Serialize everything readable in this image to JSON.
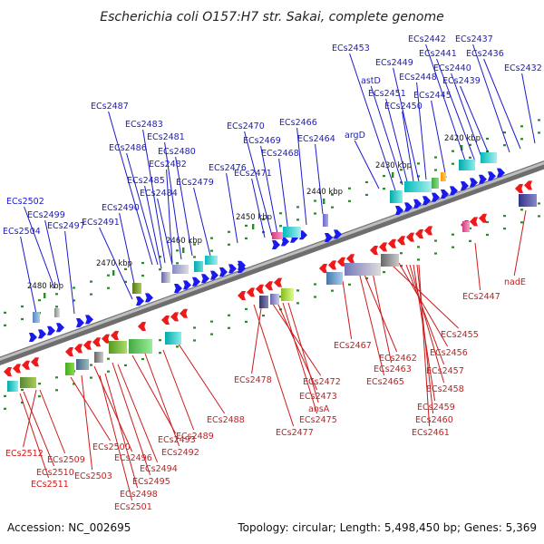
{
  "title": "Escherichia coli O157:H7 str. Sakai, complete genome",
  "footer": {
    "accession": "Accession: NC_002695",
    "summary": "Topology: circular; Length: 5,498,450 bp; Genes: 5,369"
  },
  "colors": {
    "forward": "#1a1aee",
    "reverse": "#ee1a1a",
    "backbone": "#8c8c8c",
    "tick": "#2a8a2a",
    "label_forward": "#1a1acc",
    "label_reverse": "#cc1a1a"
  },
  "kbp_markers": [
    "2480 kbp",
    "2470 kbp",
    "2460 kbp",
    "2450 kbp",
    "2440 kbp",
    "2430 kbp",
    "2420 kbp"
  ],
  "forward_labels": [
    "ECs2502",
    "ECs2499",
    "ECs2504",
    "ECs2497",
    "ECs2490",
    "ECs2491",
    "ECs2487",
    "ECs2483",
    "ECs2481",
    "ECs2486",
    "ECs2480",
    "ECs2482",
    "ECs2485",
    "ECs2484",
    "ECs2479",
    "ECs2476",
    "ECs2470",
    "ECs2466",
    "ECs2469",
    "ECs2468",
    "ECs2471",
    "ECs2464",
    "argD",
    "ECs2453",
    "astD",
    "ECs2449",
    "ECs2451",
    "ECs2448",
    "ECs2450",
    "ECs2442",
    "ECs2441",
    "ECs2440",
    "ECs2445",
    "ECs2439",
    "ECs2437",
    "ECs2436",
    "ECs2432"
  ],
  "reverse_labels": [
    "ECs2512",
    "ECs2509",
    "ECs2510",
    "ECs2511",
    "ECs2500",
    "ECs2503",
    "ECs2496",
    "ECs2501",
    "ECs2498",
    "ECs2495",
    "ECs2494",
    "ECs2493",
    "ECs2492",
    "ECs2489",
    "ECs2488",
    "ECs2478",
    "ECs2472",
    "ECs2473",
    "ECs2475",
    "ECs2477",
    "ansA",
    "ECs2467",
    "ECs2462",
    "ECs2463",
    "ECs2465",
    "ECs2456",
    "ECs2457",
    "ECs2458",
    "ECs2455",
    "ECs2459",
    "ECs2460",
    "ECs2461",
    "ECs2447",
    "nadE"
  ]
}
